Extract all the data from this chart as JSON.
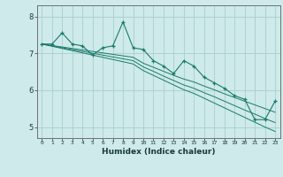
{
  "title": "",
  "xlabel": "Humidex (Indice chaleur)",
  "ylabel": "",
  "background_color": "#ceeaea",
  "grid_color": "#aacece",
  "line_color": "#1a7a6a",
  "xlim": [
    -0.5,
    23.5
  ],
  "ylim": [
    4.7,
    8.3
  ],
  "yticks": [
    5,
    6,
    7,
    8
  ],
  "xticks": [
    0,
    1,
    2,
    3,
    4,
    5,
    6,
    7,
    8,
    9,
    10,
    11,
    12,
    13,
    14,
    15,
    16,
    17,
    18,
    19,
    20,
    21,
    22,
    23
  ],
  "x_data": [
    0,
    1,
    2,
    3,
    4,
    5,
    6,
    7,
    8,
    9,
    10,
    11,
    12,
    13,
    14,
    15,
    16,
    17,
    18,
    19,
    20,
    21,
    22,
    23
  ],
  "y_main": [
    7.25,
    7.25,
    7.55,
    7.25,
    7.2,
    6.95,
    7.15,
    7.2,
    7.85,
    7.15,
    7.1,
    6.8,
    6.65,
    6.45,
    6.8,
    6.65,
    6.35,
    6.2,
    6.05,
    5.85,
    5.75,
    5.2,
    5.2,
    5.7
  ],
  "y_line1": [
    7.25,
    7.21,
    7.17,
    7.13,
    7.09,
    7.05,
    7.01,
    6.97,
    6.93,
    6.89,
    6.73,
    6.62,
    6.51,
    6.4,
    6.3,
    6.22,
    6.11,
    6.01,
    5.9,
    5.8,
    5.7,
    5.6,
    5.5,
    5.4
  ],
  "y_line2": [
    7.25,
    7.2,
    7.15,
    7.1,
    7.05,
    7.0,
    6.95,
    6.9,
    6.85,
    6.8,
    6.63,
    6.51,
    6.38,
    6.26,
    6.14,
    6.05,
    5.93,
    5.82,
    5.7,
    5.58,
    5.46,
    5.35,
    5.23,
    5.12
  ],
  "y_line3": [
    7.25,
    7.19,
    7.13,
    7.07,
    7.01,
    6.95,
    6.89,
    6.83,
    6.77,
    6.71,
    6.53,
    6.4,
    6.27,
    6.14,
    6.01,
    5.91,
    5.78,
    5.65,
    5.52,
    5.39,
    5.26,
    5.13,
    5.0,
    4.88
  ]
}
